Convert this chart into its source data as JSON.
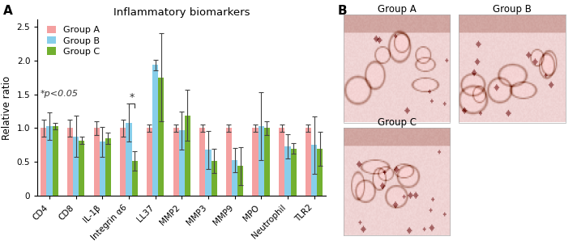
{
  "title": "Inflammatory biomarkers",
  "panel_a_label": "A",
  "panel_b_label": "B",
  "ylabel": "Relative ratio",
  "categories": [
    "CD4",
    "CD8",
    "IL-1β",
    "Integrin α6",
    "LL37",
    "MMP2",
    "MMP3",
    "MMP9",
    "MPO",
    "Neutrophil",
    "TLR2"
  ],
  "group_labels": [
    "Group A",
    "Group B",
    "Group C"
  ],
  "bar_colors": [
    "#F4A0A0",
    "#87CEEB",
    "#72B030"
  ],
  "bar_values": {
    "A": [
      1.0,
      1.0,
      1.0,
      1.0,
      1.0,
      1.0,
      1.0,
      1.0,
      1.0,
      1.0,
      1.0
    ],
    "B": [
      1.03,
      0.88,
      0.8,
      1.08,
      1.93,
      0.97,
      0.68,
      0.53,
      1.03,
      0.73,
      0.75
    ],
    "C": [
      1.03,
      0.82,
      0.85,
      0.52,
      1.75,
      1.19,
      0.52,
      0.44,
      1.0,
      0.7,
      0.7
    ]
  },
  "error_values": {
    "A": [
      0.12,
      0.12,
      0.1,
      0.12,
      0.05,
      0.05,
      0.05,
      0.05,
      0.05,
      0.05,
      0.05
    ],
    "B": [
      0.2,
      0.3,
      0.22,
      0.28,
      0.08,
      0.28,
      0.28,
      0.18,
      0.5,
      0.18,
      0.42
    ],
    "C": [
      0.05,
      0.05,
      0.08,
      0.14,
      0.65,
      0.38,
      0.18,
      0.28,
      0.1,
      0.08,
      0.25
    ]
  },
  "pvalue_text": "*p<0.05",
  "ylim": [
    0,
    2.6
  ],
  "yticks": [
    0,
    0.5,
    1.0,
    1.5,
    2.0,
    2.5
  ],
  "background_color": "#ffffff",
  "ihc_group_labels": [
    "Group A",
    "Group B",
    "Group C"
  ],
  "ihc_label_fontsize": 8.5,
  "title_fontsize": 9.5,
  "tick_fontsize": 7.5,
  "ylabel_fontsize": 8.5,
  "legend_fontsize": 8.0
}
